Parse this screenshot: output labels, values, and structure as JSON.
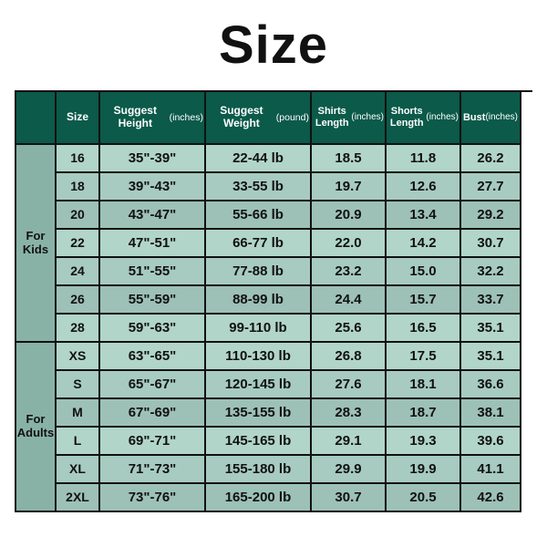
{
  "title": "Size",
  "columns": {
    "group": "",
    "size": "Size",
    "height": {
      "label": "Suggest Height",
      "unit": "(inches)"
    },
    "weight": {
      "label": "Suggest Weight",
      "unit": "(pound)"
    },
    "shirts": {
      "label": "Shirts Length",
      "unit": "(inches)"
    },
    "shorts": {
      "label": "Shorts Length",
      "unit": "(inches)"
    },
    "bust": {
      "label": "Bust",
      "unit": "(inches)"
    }
  },
  "groups": [
    {
      "label": "For\nKids",
      "rows": [
        {
          "size": "16",
          "height": "35\"-39\"",
          "weight": "22-44 lb",
          "shirts": "18.5",
          "shorts": "11.8",
          "bust": "26.2"
        },
        {
          "size": "18",
          "height": "39\"-43\"",
          "weight": "33-55 lb",
          "shirts": "19.7",
          "shorts": "12.6",
          "bust": "27.7"
        },
        {
          "size": "20",
          "height": "43\"-47\"",
          "weight": "55-66 lb",
          "shirts": "20.9",
          "shorts": "13.4",
          "bust": "29.2"
        },
        {
          "size": "22",
          "height": "47\"-51\"",
          "weight": "66-77 lb",
          "shirts": "22.0",
          "shorts": "14.2",
          "bust": "30.7"
        },
        {
          "size": "24",
          "height": "51\"-55\"",
          "weight": "77-88 lb",
          "shirts": "23.2",
          "shorts": "15.0",
          "bust": "32.2"
        },
        {
          "size": "26",
          "height": "55\"-59\"",
          "weight": "88-99 lb",
          "shirts": "24.4",
          "shorts": "15.7",
          "bust": "33.7"
        },
        {
          "size": "28",
          "height": "59\"-63\"",
          "weight": "99-110 lb",
          "shirts": "25.6",
          "shorts": "16.5",
          "bust": "35.1"
        }
      ]
    },
    {
      "label": "For\nAdults",
      "rows": [
        {
          "size": "XS",
          "height": "63\"-65\"",
          "weight": "110-130 lb",
          "shirts": "26.8",
          "shorts": "17.5",
          "bust": "35.1"
        },
        {
          "size": "S",
          "height": "65\"-67\"",
          "weight": "120-145 lb",
          "shirts": "27.6",
          "shorts": "18.1",
          "bust": "36.6"
        },
        {
          "size": "M",
          "height": "67\"-69\"",
          "weight": "135-155 lb",
          "shirts": "28.3",
          "shorts": "18.7",
          "bust": "38.1"
        },
        {
          "size": "L",
          "height": "69\"-71\"",
          "weight": "145-165 lb",
          "shirts": "29.1",
          "shorts": "19.3",
          "bust": "39.6"
        },
        {
          "size": "XL",
          "height": "71\"-73\"",
          "weight": "155-180 lb",
          "shirts": "29.9",
          "shorts": "19.9",
          "bust": "41.1"
        },
        {
          "size": "2XL",
          "height": "73\"-76\"",
          "weight": "165-200 lb",
          "shirts": "30.7",
          "shorts": "20.5",
          "bust": "42.6"
        }
      ]
    }
  ],
  "style": {
    "header_bg": "#0b5a4a",
    "side_bg": "#89b2a7",
    "row_bgs": [
      "#b1d5c9",
      "#a7cbc0",
      "#9dc1b6"
    ]
  }
}
